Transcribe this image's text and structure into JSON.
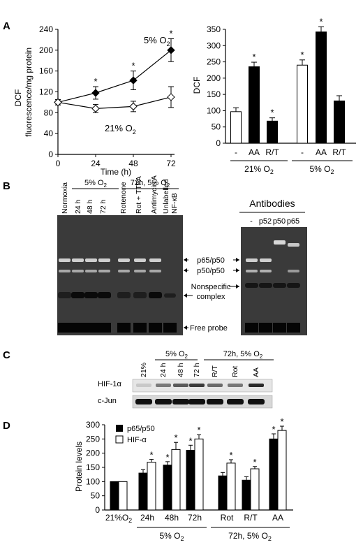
{
  "panels": {
    "A": "A",
    "B": "B",
    "C": "C",
    "D": "D"
  },
  "panel_a_left": {
    "ylabel_line1": "DCF",
    "ylabel_line2": "fluorescence/mg protein",
    "xlabel": "Time (h)",
    "xticks": [
      "0",
      "24",
      "48",
      "72"
    ],
    "yticks": [
      "0",
      "40",
      "80",
      "120",
      "160",
      "200",
      "240"
    ],
    "label_5": "5% O",
    "label_21": "21% O",
    "sub": "2"
  },
  "panel_a_right": {
    "ylabel": "DCF",
    "yticks": [
      "0",
      "50",
      "100",
      "150",
      "200",
      "250",
      "300",
      "350"
    ],
    "xticks": [
      "-",
      "AA",
      "R/T",
      "-",
      "AA",
      "R/T"
    ],
    "group1": "21% O",
    "group2": "5% O",
    "sub": "2"
  },
  "panel_b": {
    "header_5": "5% O",
    "header_72": "72h, 5% O",
    "sub": "2",
    "lanes": [
      "Normoxia",
      "24 h",
      "48 h",
      "72 h",
      "Rotenone",
      "Rot + TTFA",
      "Antimycin A",
      "Unlabelled",
      "NF-κB"
    ],
    "antibodies_title": "Antibodies",
    "antibody_lanes": [
      "-",
      "p52",
      "p50",
      "p65"
    ],
    "labels": [
      "p65/p50",
      "p50/p50",
      "Nonspecific",
      "complex",
      "Free probe"
    ]
  },
  "panel_c": {
    "header_5": "5% O",
    "header_72": "72h, 5% O",
    "sub": "2",
    "lanes": [
      "21%",
      "24 h",
      "48 h",
      "72 h",
      "R/T",
      "Rot",
      "AA"
    ],
    "rows": [
      "HIF-1α",
      "c-Jun"
    ]
  },
  "panel_d": {
    "ylabel": "Protein levels",
    "legend": [
      "p65/p50",
      "HIF-α"
    ],
    "yticks": [
      "0",
      "50",
      "100",
      "150",
      "200",
      "250",
      "300"
    ],
    "xticks": [
      "21%O",
      "24h",
      "48h",
      "72h",
      "Rot",
      "R/T",
      "AA"
    ],
    "group1": "5% O",
    "group2": "72h, 5% O",
    "sub": "2"
  },
  "chart_data": [
    {
      "type": "line",
      "xlabel": "Time (h)",
      "ylabel": "DCF fluorescence/mg protein",
      "x": [
        0,
        24,
        48,
        72
      ],
      "ylim": [
        0,
        240
      ],
      "series": [
        {
          "name": "5% O2",
          "values": [
            100,
            118,
            142,
            200
          ],
          "errors": [
            5,
            12,
            18,
            22
          ],
          "marker": "filled-diamond",
          "significant": [
            false,
            true,
            true,
            true
          ]
        },
        {
          "name": "21% O2",
          "values": [
            100,
            88,
            92,
            110
          ],
          "errors": [
            5,
            8,
            10,
            20
          ],
          "marker": "open-diamond"
        }
      ]
    },
    {
      "type": "bar",
      "ylabel": "DCF",
      "ylim": [
        0,
        350
      ],
      "categories": [
        "-",
        "AA",
        "R/T",
        "-",
        "AA",
        "R/T"
      ],
      "groups": [
        "21% O2",
        "21% O2",
        "21% O2",
        "5% O2",
        "5% O2",
        "5% O2"
      ],
      "values": [
        97,
        235,
        68,
        240,
        342,
        130
      ],
      "errors": [
        12,
        14,
        10,
        16,
        16,
        16
      ],
      "fill": [
        "open",
        "filled",
        "filled",
        "open",
        "filled",
        "filled"
      ],
      "significant": [
        false,
        true,
        true,
        true,
        true,
        false
      ]
    },
    {
      "type": "bar",
      "ylabel": "Protein levels",
      "ylim": [
        0,
        300
      ],
      "categories": [
        "21%O2",
        "24h",
        "48h",
        "72h",
        "Rot",
        "R/T",
        "AA"
      ],
      "series": [
        {
          "name": "p65/p50",
          "values": [
            100,
            130,
            158,
            210,
            120,
            105,
            250
          ],
          "errors": [
            0,
            12,
            12,
            18,
            12,
            12,
            18
          ],
          "significant": [
            false,
            false,
            true,
            true,
            false,
            false,
            true
          ]
        },
        {
          "name": "HIF-α",
          "values": [
            100,
            168,
            213,
            250,
            165,
            145,
            280
          ],
          "errors": [
            0,
            10,
            25,
            15,
            12,
            8,
            15
          ],
          "significant": [
            false,
            true,
            true,
            true,
            true,
            true,
            true
          ]
        }
      ],
      "colors": {
        "p65/p50": "#000000",
        "HIF-α": "#ffffff"
      }
    }
  ]
}
